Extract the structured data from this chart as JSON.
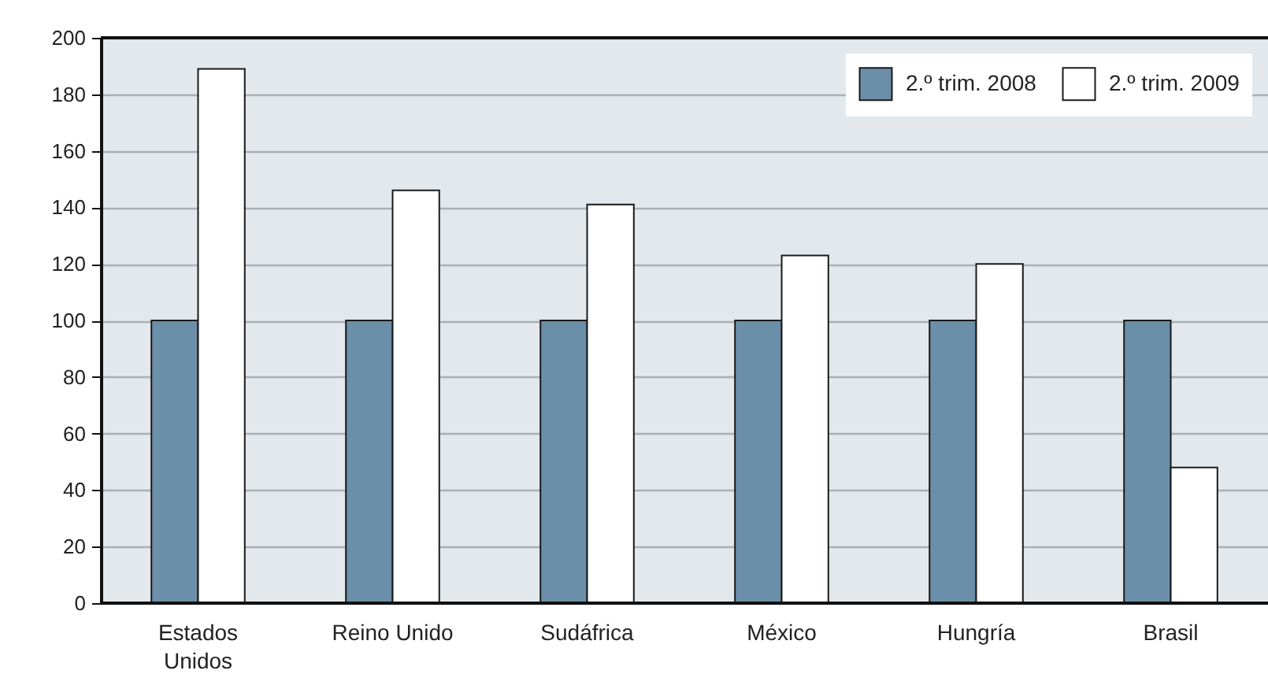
{
  "chart_data": {
    "type": "bar",
    "categories": [
      "Estados Unidos",
      "Reino Unido",
      "Sudáfrica",
      "México",
      "Hungría",
      "Brasil"
    ],
    "series": [
      {
        "name": "2.º trim. 2008",
        "color": "#6b8fa8",
        "values": [
          100,
          100,
          100,
          100,
          100,
          100
        ]
      },
      {
        "name": "2.º trim. 2009",
        "color": "#ffffff",
        "values": [
          189,
          146,
          141,
          123,
          120,
          48
        ]
      }
    ],
    "ylim": [
      0,
      200
    ],
    "yticks": [
      0,
      20,
      40,
      60,
      80,
      100,
      120,
      140,
      160,
      180,
      200
    ],
    "grid": "y",
    "legend": "top right"
  }
}
